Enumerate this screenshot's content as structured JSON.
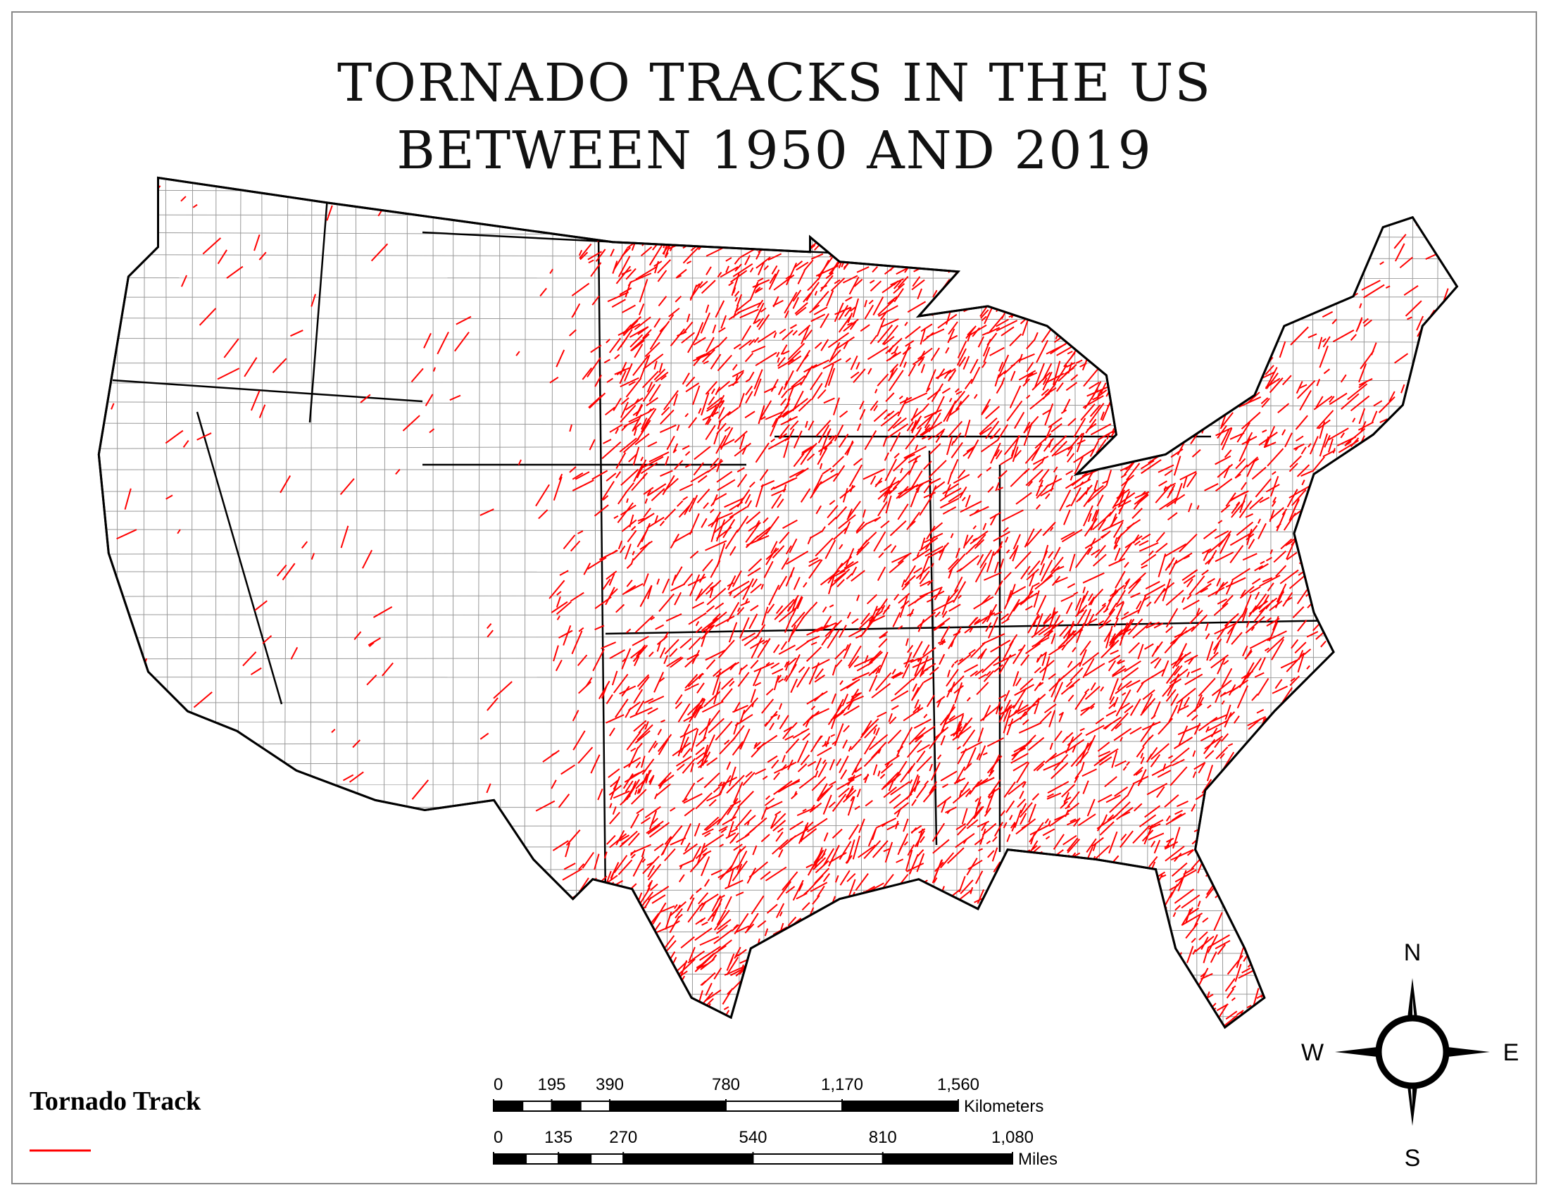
{
  "title": "TORNADO TRACKS IN THE US BETWEEN 1950 AND 2019",
  "legend": {
    "label": "Tornado Track",
    "color": "#ff0000"
  },
  "scale_bars": [
    {
      "unit": "Kilometers",
      "ticks": [
        0,
        195,
        390,
        780,
        {
          "value": 1170,
          "label": "1,170"
        },
        {
          "value": 1560,
          "label": "1,560"
        }
      ]
    },
    {
      "unit": "Miles",
      "ticks": [
        0,
        135,
        270,
        540,
        810,
        {
          "value": 1080,
          "label": "1,080"
        }
      ]
    }
  ],
  "compass": {
    "north": "N",
    "south": "S",
    "west": "W",
    "east": "E"
  }
}
